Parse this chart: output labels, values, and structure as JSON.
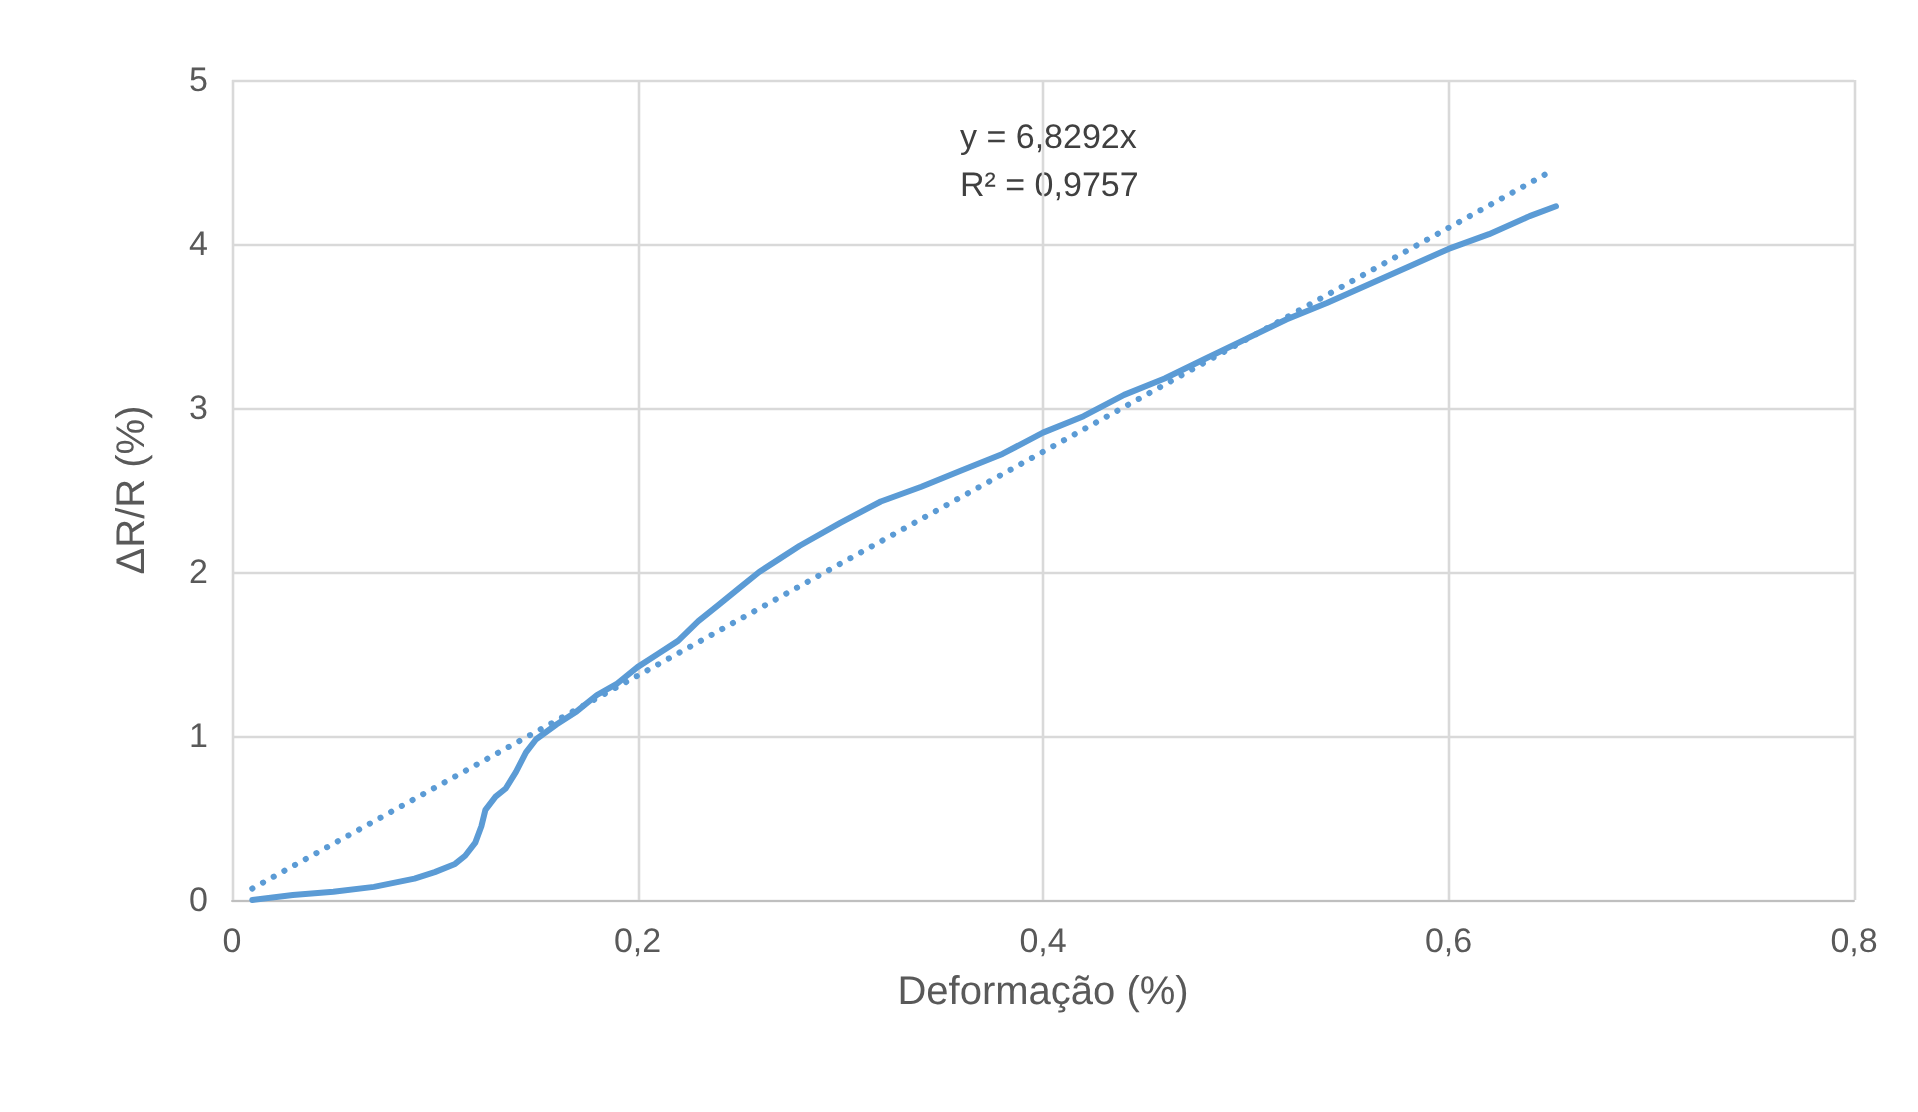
{
  "chart_data": {
    "type": "line",
    "xlabel": "Deformação (%)",
    "ylabel": "ΔR/R (%)",
    "annotations": [
      "y = 6,8292x",
      "R² = 0,9757"
    ],
    "series": [
      {
        "color": "#5b9bd5",
        "line_style": "solid",
        "x": [
          0.01,
          0.03,
          0.05,
          0.07,
          0.09,
          0.1,
          0.11,
          0.115,
          0.12,
          0.123,
          0.125,
          0.13,
          0.135,
          0.14,
          0.145,
          0.15,
          0.16,
          0.17,
          0.18,
          0.19,
          0.2,
          0.21,
          0.22,
          0.23,
          0.24,
          0.25,
          0.26,
          0.27,
          0.28,
          0.3,
          0.32,
          0.34,
          0.36,
          0.38,
          0.4,
          0.42,
          0.44,
          0.46,
          0.48,
          0.5,
          0.52,
          0.54,
          0.56,
          0.58,
          0.6,
          0.62,
          0.64,
          0.653
        ],
        "values": [
          0,
          0.03,
          0.05,
          0.08,
          0.13,
          0.17,
          0.22,
          0.27,
          0.35,
          0.45,
          0.55,
          0.63,
          0.68,
          0.78,
          0.9,
          0.98,
          1.07,
          1.15,
          1.25,
          1.32,
          1.42,
          1.5,
          1.58,
          1.7,
          1.8,
          1.9,
          2.0,
          2.08,
          2.16,
          2.3,
          2.43,
          2.52,
          2.62,
          2.72,
          2.85,
          2.95,
          3.08,
          3.18,
          3.3,
          3.42,
          3.54,
          3.64,
          3.75,
          3.86,
          3.97,
          4.06,
          4.17,
          4.23
        ]
      },
      {
        "color": "#5b9bd5",
        "line_style": "dotted",
        "x": [
          0.01,
          0.65
        ],
        "values": [
          0.07,
          4.44
        ]
      }
    ],
    "xlim": [
      0,
      0.8
    ],
    "xticks": [
      0,
      {
        "value": 0.2,
        "label": "0,2"
      },
      {
        "value": 0.4,
        "label": "0,4"
      },
      {
        "value": 0.6,
        "label": "0,6"
      },
      {
        "value": 0.8,
        "label": "0,8"
      }
    ],
    "ylim": [
      0,
      5
    ],
    "yticks": [
      0,
      1,
      2,
      3,
      4,
      5
    ],
    "grid": true,
    "marker": "none"
  }
}
